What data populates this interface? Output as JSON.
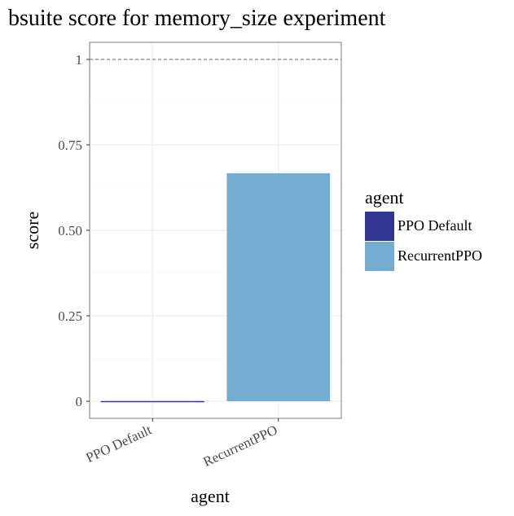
{
  "chart_data": {
    "type": "bar",
    "title": "bsuite score for memory_size experiment",
    "xlabel": "agent",
    "ylabel": "score",
    "categories": [
      "PPO Default",
      "RecurrentPPO"
    ],
    "values": [
      0.0,
      0.667
    ],
    "colors": [
      "#313695",
      "#74add1"
    ],
    "ylim": [
      -0.05,
      1.05
    ],
    "yticks": [
      0,
      0.25,
      0.5,
      0.75,
      1
    ],
    "ytick_labels": [
      "0",
      "0.25",
      "0.50",
      "0.75",
      "1"
    ],
    "reference_line": 1,
    "grid": true,
    "legend": {
      "title": "agent",
      "position": "right",
      "entries": [
        "PPO Default",
        "RecurrentPPO"
      ]
    }
  }
}
